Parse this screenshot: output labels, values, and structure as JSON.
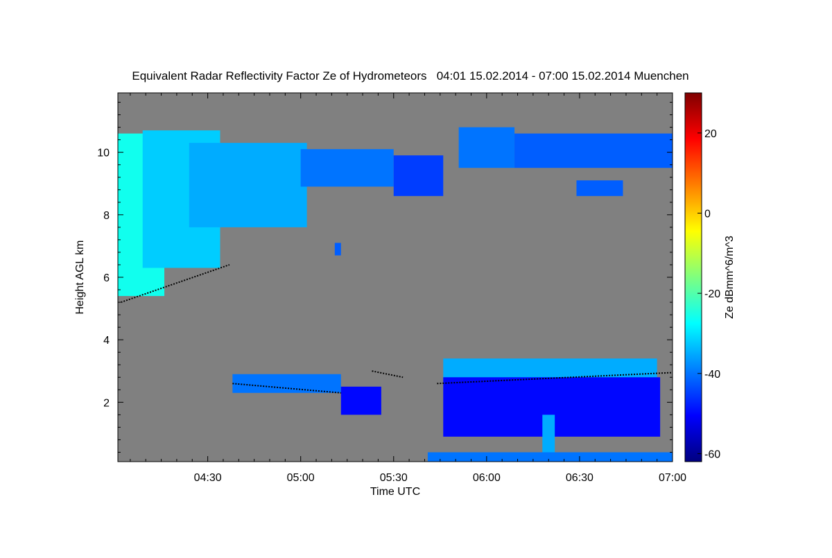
{
  "chart_data": {
    "type": "heatmap",
    "title": "Equivalent Radar Reflectivity Factor Ze of Hydrometeors   04:01 15.02.2014 - 07:00 15.02.2014 Muenchen",
    "xlabel": "Time UTC",
    "ylabel": "Height AGL km",
    "colorbar_label": "Ze dBmm^6/m^3",
    "x_range_minutes": [
      241,
      420
    ],
    "y_range_km": [
      0.1,
      11.9
    ],
    "x_ticks": [
      {
        "minute": 270,
        "label": "04:30"
      },
      {
        "minute": 300,
        "label": "05:00"
      },
      {
        "minute": 330,
        "label": "05:30"
      },
      {
        "minute": 360,
        "label": "06:00"
      },
      {
        "minute": 390,
        "label": "06:30"
      },
      {
        "minute": 420,
        "label": "07:00"
      }
    ],
    "y_ticks": [
      {
        "value": 2,
        "label": "2"
      },
      {
        "value": 4,
        "label": "4"
      },
      {
        "value": 6,
        "label": "6"
      },
      {
        "value": 8,
        "label": "8"
      },
      {
        "value": 10,
        "label": "10"
      }
    ],
    "colorbar_range": [
      -62,
      30
    ],
    "colorbar_ticks": [
      {
        "value": -60,
        "label": "-60"
      },
      {
        "value": -40,
        "label": "-40"
      },
      {
        "value": -20,
        "label": "-20"
      },
      {
        "value": 0,
        "label": "0"
      },
      {
        "value": 20,
        "label": "20"
      }
    ],
    "colormap": [
      "#00007f",
      "#0000ff",
      "#007fff",
      "#00ffff",
      "#7fff7f",
      "#ffff00",
      "#ff7f00",
      "#ff0000",
      "#7f0000"
    ],
    "background_color": "#808080",
    "regions": [
      {
        "t0": 241,
        "t1": 256,
        "h0": 5.4,
        "h1": 10.6,
        "ze": -26
      },
      {
        "t0": 249,
        "t1": 274,
        "h0": 6.3,
        "h1": 10.7,
        "ze": -32
      },
      {
        "t0": 264,
        "t1": 302,
        "h0": 7.6,
        "h1": 10.3,
        "ze": -35
      },
      {
        "t0": 300,
        "t1": 330,
        "h0": 8.9,
        "h1": 10.1,
        "ze": -40
      },
      {
        "t0": 330,
        "t1": 346,
        "h0": 8.6,
        "h1": 9.9,
        "ze": -45
      },
      {
        "t0": 351,
        "t1": 369,
        "h0": 9.5,
        "h1": 10.8,
        "ze": -40
      },
      {
        "t0": 369,
        "t1": 420,
        "h0": 9.5,
        "h1": 10.6,
        "ze": -42
      },
      {
        "t0": 389,
        "t1": 404,
        "h0": 8.6,
        "h1": 9.1,
        "ze": -42
      },
      {
        "t0": 311,
        "t1": 313,
        "h0": 6.7,
        "h1": 7.1,
        "ze": -42
      },
      {
        "t0": 278,
        "t1": 313,
        "h0": 2.3,
        "h1": 2.9,
        "ze": -40
      },
      {
        "t0": 313,
        "t1": 326,
        "h0": 1.6,
        "h1": 2.5,
        "ze": -50
      },
      {
        "t0": 346,
        "t1": 415,
        "h0": 2.7,
        "h1": 3.4,
        "ze": -35
      },
      {
        "t0": 346,
        "t1": 416,
        "h0": 0.9,
        "h1": 2.8,
        "ze": -50
      },
      {
        "t0": 378,
        "t1": 382,
        "h0": 0.2,
        "h1": 1.6,
        "ze": -35
      },
      {
        "t0": 341,
        "t1": 420,
        "h0": 0.1,
        "h1": 0.4,
        "ze": -40
      }
    ],
    "melting_layer": [
      {
        "t0": 242,
        "t1": 277,
        "h0": 5.2,
        "h1": 6.4
      },
      {
        "t0": 278,
        "t1": 313,
        "h0": 2.6,
        "h1": 2.3
      },
      {
        "t0": 323,
        "t1": 333,
        "h0": 3.0,
        "h1": 2.8
      },
      {
        "t0": 344,
        "t1": 420,
        "h0": 2.6,
        "h1": 2.95
      }
    ]
  }
}
